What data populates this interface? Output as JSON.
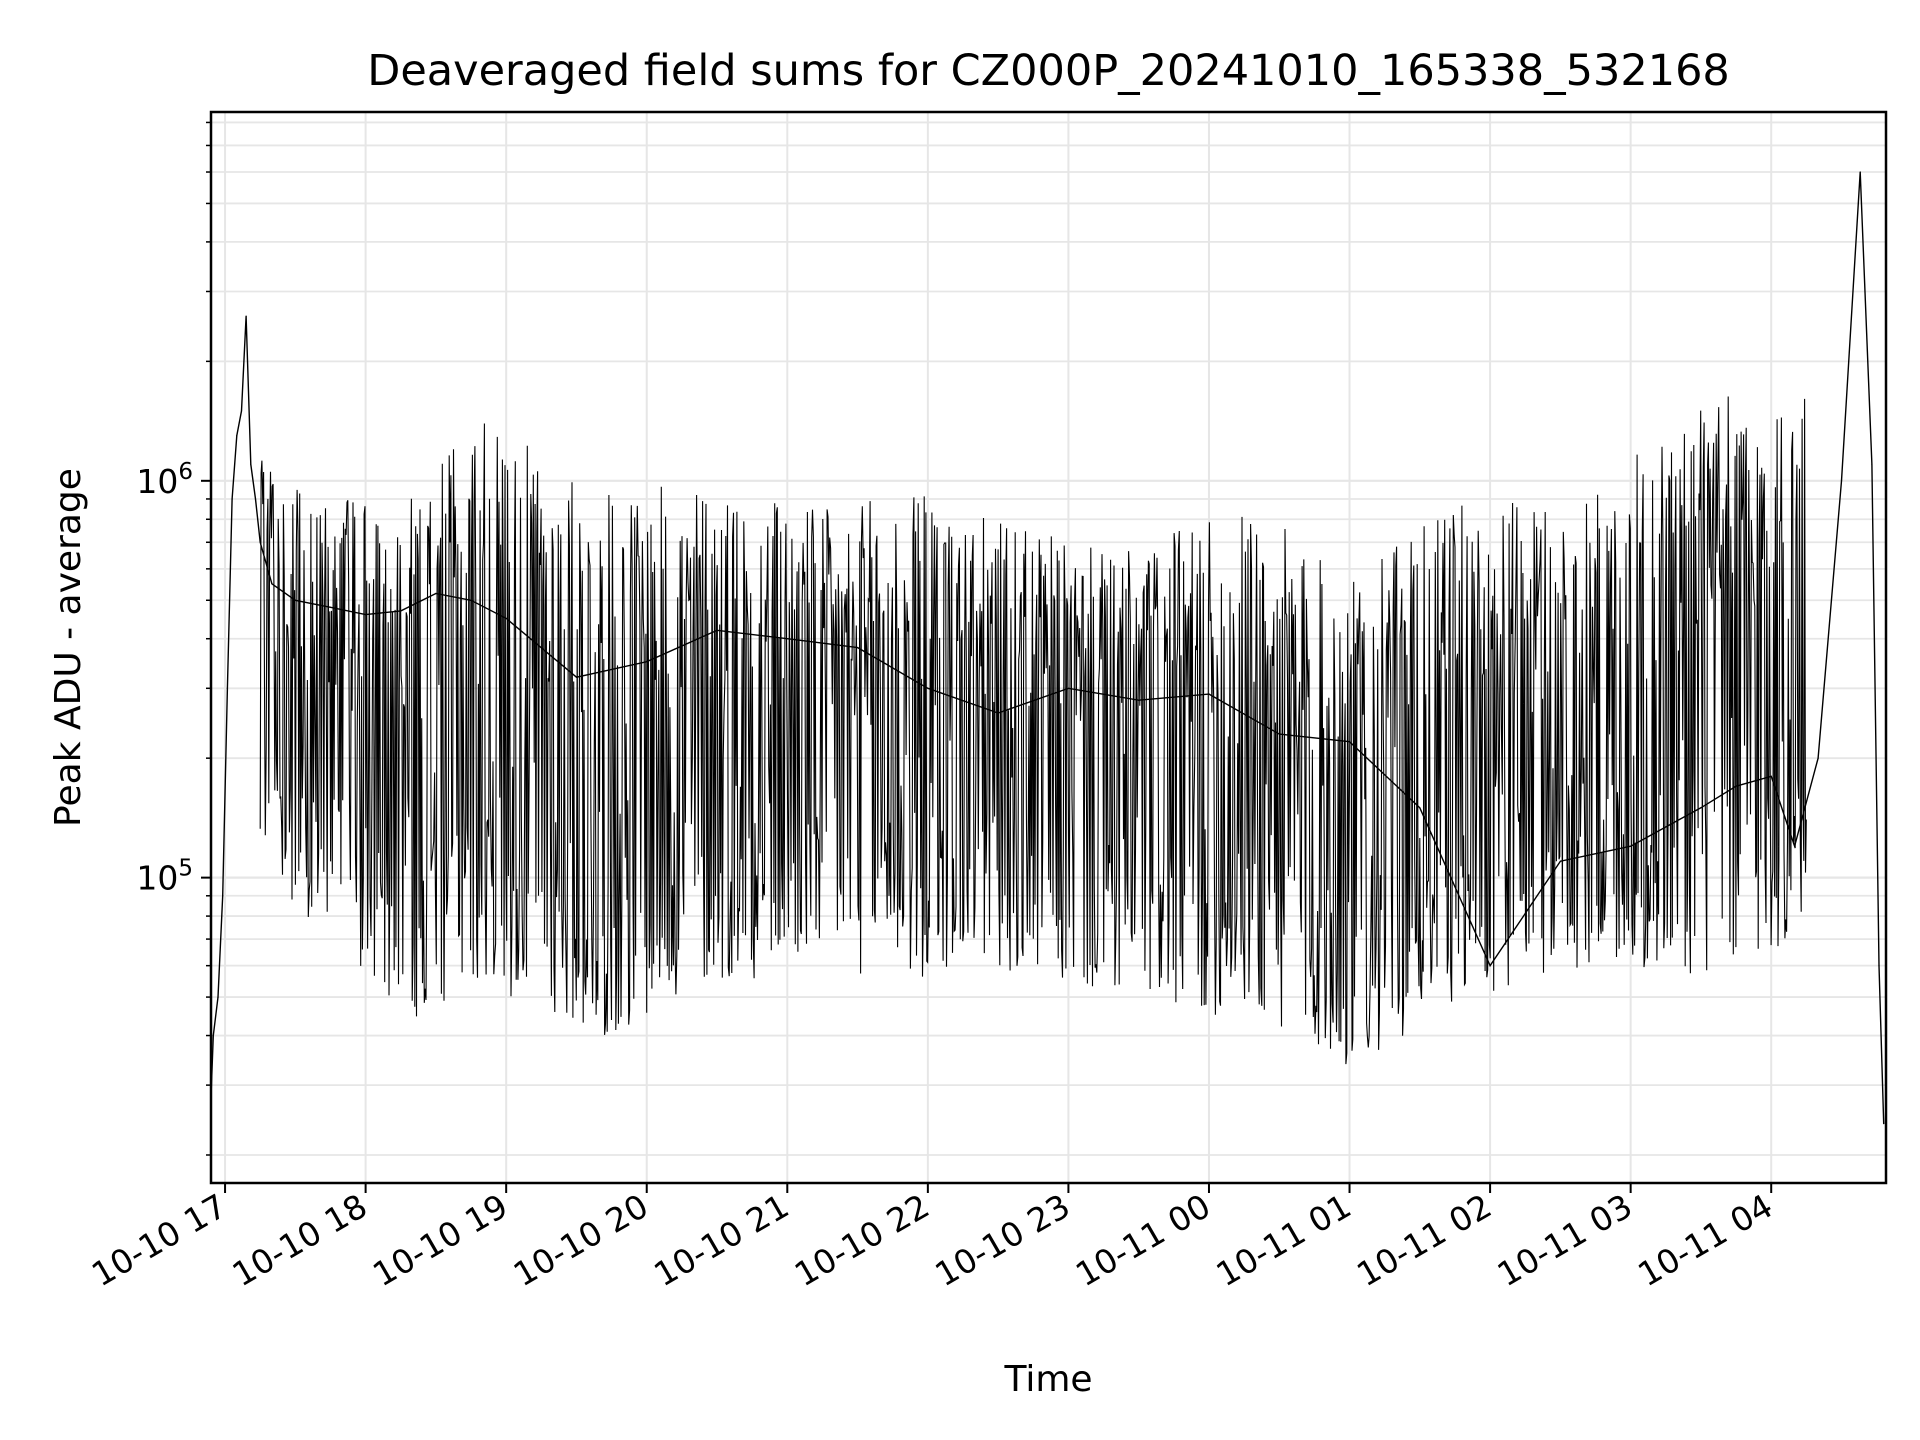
{
  "chart_data": {
    "type": "line",
    "title": "Deaveraged field sums for CZ000P_20241010_165338_532168",
    "xlabel": "Time",
    "ylabel": "Peak ADU - average",
    "y_scale": "log",
    "ylim": [
      17000,
      8500000
    ],
    "xlim": [
      "2024-10-10 16:54",
      "2024-10-11 04:49"
    ],
    "grid": true,
    "x_ticks": [
      "10-10 17",
      "10-10 18",
      "10-10 19",
      "10-10 20",
      "10-10 21",
      "10-10 22",
      "10-10 23",
      "10-11 00",
      "10-11 01",
      "10-11 02",
      "10-11 03",
      "10-11 04"
    ],
    "y_tick_labels": [
      {
        "base": "10",
        "exp": "6",
        "value": 1000000
      },
      {
        "base": "10",
        "exp": "5",
        "value": 100000
      }
    ],
    "line_color": "#000000",
    "series": [
      {
        "name": "",
        "x": [
          "2024-10-10 16:54",
          "2024-10-10 16:55",
          "2024-10-10 16:57",
          "2024-10-10 16:59",
          "2024-10-10 17:01",
          "2024-10-10 17:03",
          "2024-10-10 17:05",
          "2024-10-10 17:07",
          "2024-10-10 17:09",
          "2024-10-10 17:11",
          "2024-10-10 17:13",
          "2024-10-10 17:15",
          "2024-10-10 17:20",
          "2024-10-10 17:30",
          "2024-10-10 17:45",
          "2024-10-10 18:00",
          "2024-10-10 18:15",
          "2024-10-10 18:30",
          "2024-10-10 18:45",
          "2024-10-10 19:00",
          "2024-10-10 19:30",
          "2024-10-10 20:00",
          "2024-10-10 20:30",
          "2024-10-10 21:00",
          "2024-10-10 21:30",
          "2024-10-10 22:00",
          "2024-10-10 22:30",
          "2024-10-10 23:00",
          "2024-10-10 23:30",
          "2024-10-11 00:00",
          "2024-10-11 00:30",
          "2024-10-11 01:00",
          "2024-10-11 01:30",
          "2024-10-11 02:00",
          "2024-10-11 02:30",
          "2024-10-11 03:00",
          "2024-10-11 03:30",
          "2024-10-11 03:45",
          "2024-10-11 04:00",
          "2024-10-11 04:10",
          "2024-10-11 04:20",
          "2024-10-11 04:30",
          "2024-10-11 04:38",
          "2024-10-11 04:43",
          "2024-10-11 04:46",
          "2024-10-11 04:48"
        ],
        "values": [
          28000,
          40000,
          50000,
          90000,
          300000,
          900000,
          1300000,
          1500000,
          2600000,
          1100000,
          900000,
          700000,
          550000,
          500000,
          480000,
          460000,
          470000,
          520000,
          500000,
          450000,
          320000,
          350000,
          420000,
          400000,
          380000,
          300000,
          260000,
          300000,
          280000,
          290000,
          230000,
          220000,
          150000,
          60000,
          110000,
          120000,
          150000,
          170000,
          180000,
          120000,
          200000,
          1000000,
          6000000,
          1100000,
          60000,
          24000
        ]
      }
    ],
    "envelope": [
      {
        "x": "2024-10-10 17:15",
        "low": 120000,
        "high": 1200000
      },
      {
        "x": "2024-10-10 17:40",
        "low": 60000,
        "high": 950000
      },
      {
        "x": "2024-10-10 18:20",
        "low": 40000,
        "high": 1000000
      },
      {
        "x": "2024-10-10 18:50",
        "low": 50000,
        "high": 1600000
      },
      {
        "x": "2024-10-10 19:40",
        "low": 35000,
        "high": 1000000
      },
      {
        "x": "2024-10-10 20:30",
        "low": 50000,
        "high": 1100000
      },
      {
        "x": "2024-10-10 21:20",
        "low": 55000,
        "high": 900000
      },
      {
        "x": "2024-10-10 21:50",
        "low": 50000,
        "high": 1050000
      },
      {
        "x": "2024-10-10 22:30",
        "low": 55000,
        "high": 850000
      },
      {
        "x": "2024-10-10 23:20",
        "low": 45000,
        "high": 700000
      },
      {
        "x": "2024-10-11 00:20",
        "low": 40000,
        "high": 950000
      },
      {
        "x": "2024-10-11 01:00",
        "low": 30000,
        "high": 600000
      },
      {
        "x": "2024-10-11 01:45",
        "low": 45000,
        "high": 950000
      },
      {
        "x": "2024-10-11 02:40",
        "low": 55000,
        "high": 950000
      },
      {
        "x": "2024-10-11 03:30",
        "low": 50000,
        "high": 1800000
      },
      {
        "x": "2024-10-11 04:15",
        "low": 60000,
        "high": 1800000
      }
    ]
  }
}
